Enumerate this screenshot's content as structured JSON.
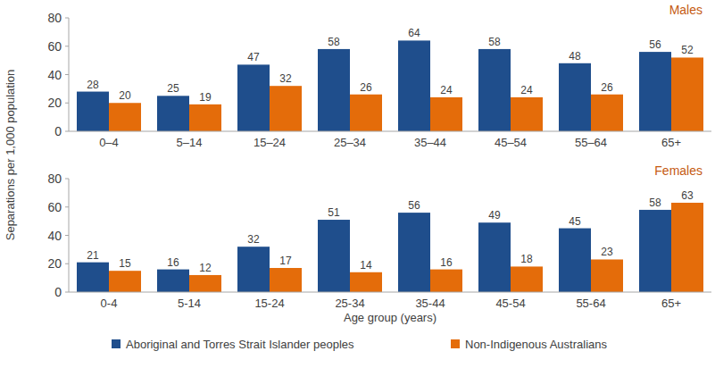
{
  "chart_data": [
    {
      "type": "bar",
      "title": "Males",
      "y_label": "Separations per 1,000 population",
      "categories": [
        "0–4",
        "5–14",
        "15–24",
        "25–34",
        "35–44",
        "45–54",
        "55–64",
        "65+"
      ],
      "series": [
        {
          "name": "Aboriginal and Torres Strait Islander peoples",
          "color": "#1f4e8c",
          "values": [
            28,
            25,
            47,
            58,
            64,
            58,
            48,
            56
          ]
        },
        {
          "name": "Non-Indigenous Australians",
          "color": "#e46c0a",
          "values": [
            20,
            19,
            32,
            26,
            24,
            24,
            26,
            52
          ]
        }
      ],
      "ylim": [
        0,
        80
      ],
      "yticks": [
        0,
        20,
        40,
        60,
        80
      ],
      "grid": false,
      "data_labels": true,
      "legend": "bottom"
    },
    {
      "type": "bar",
      "title": "Females",
      "x_label": "Age group (years)",
      "categories": [
        "0-4",
        "5-14",
        "15-24",
        "25-34",
        "35-44",
        "45-54",
        "55-64",
        "65+"
      ],
      "series": [
        {
          "name": "Aboriginal and Torres Strait Islander peoples",
          "color": "#1f4e8c",
          "values": [
            21,
            16,
            32,
            51,
            56,
            49,
            45,
            58
          ]
        },
        {
          "name": "Non-Indigenous Australians",
          "color": "#e46c0a",
          "values": [
            15,
            12,
            17,
            14,
            16,
            18,
            23,
            63
          ]
        }
      ],
      "ylim": [
        0,
        80
      ],
      "yticks": [
        0,
        20,
        40,
        60,
        80
      ],
      "grid": false,
      "data_labels": true
    }
  ]
}
